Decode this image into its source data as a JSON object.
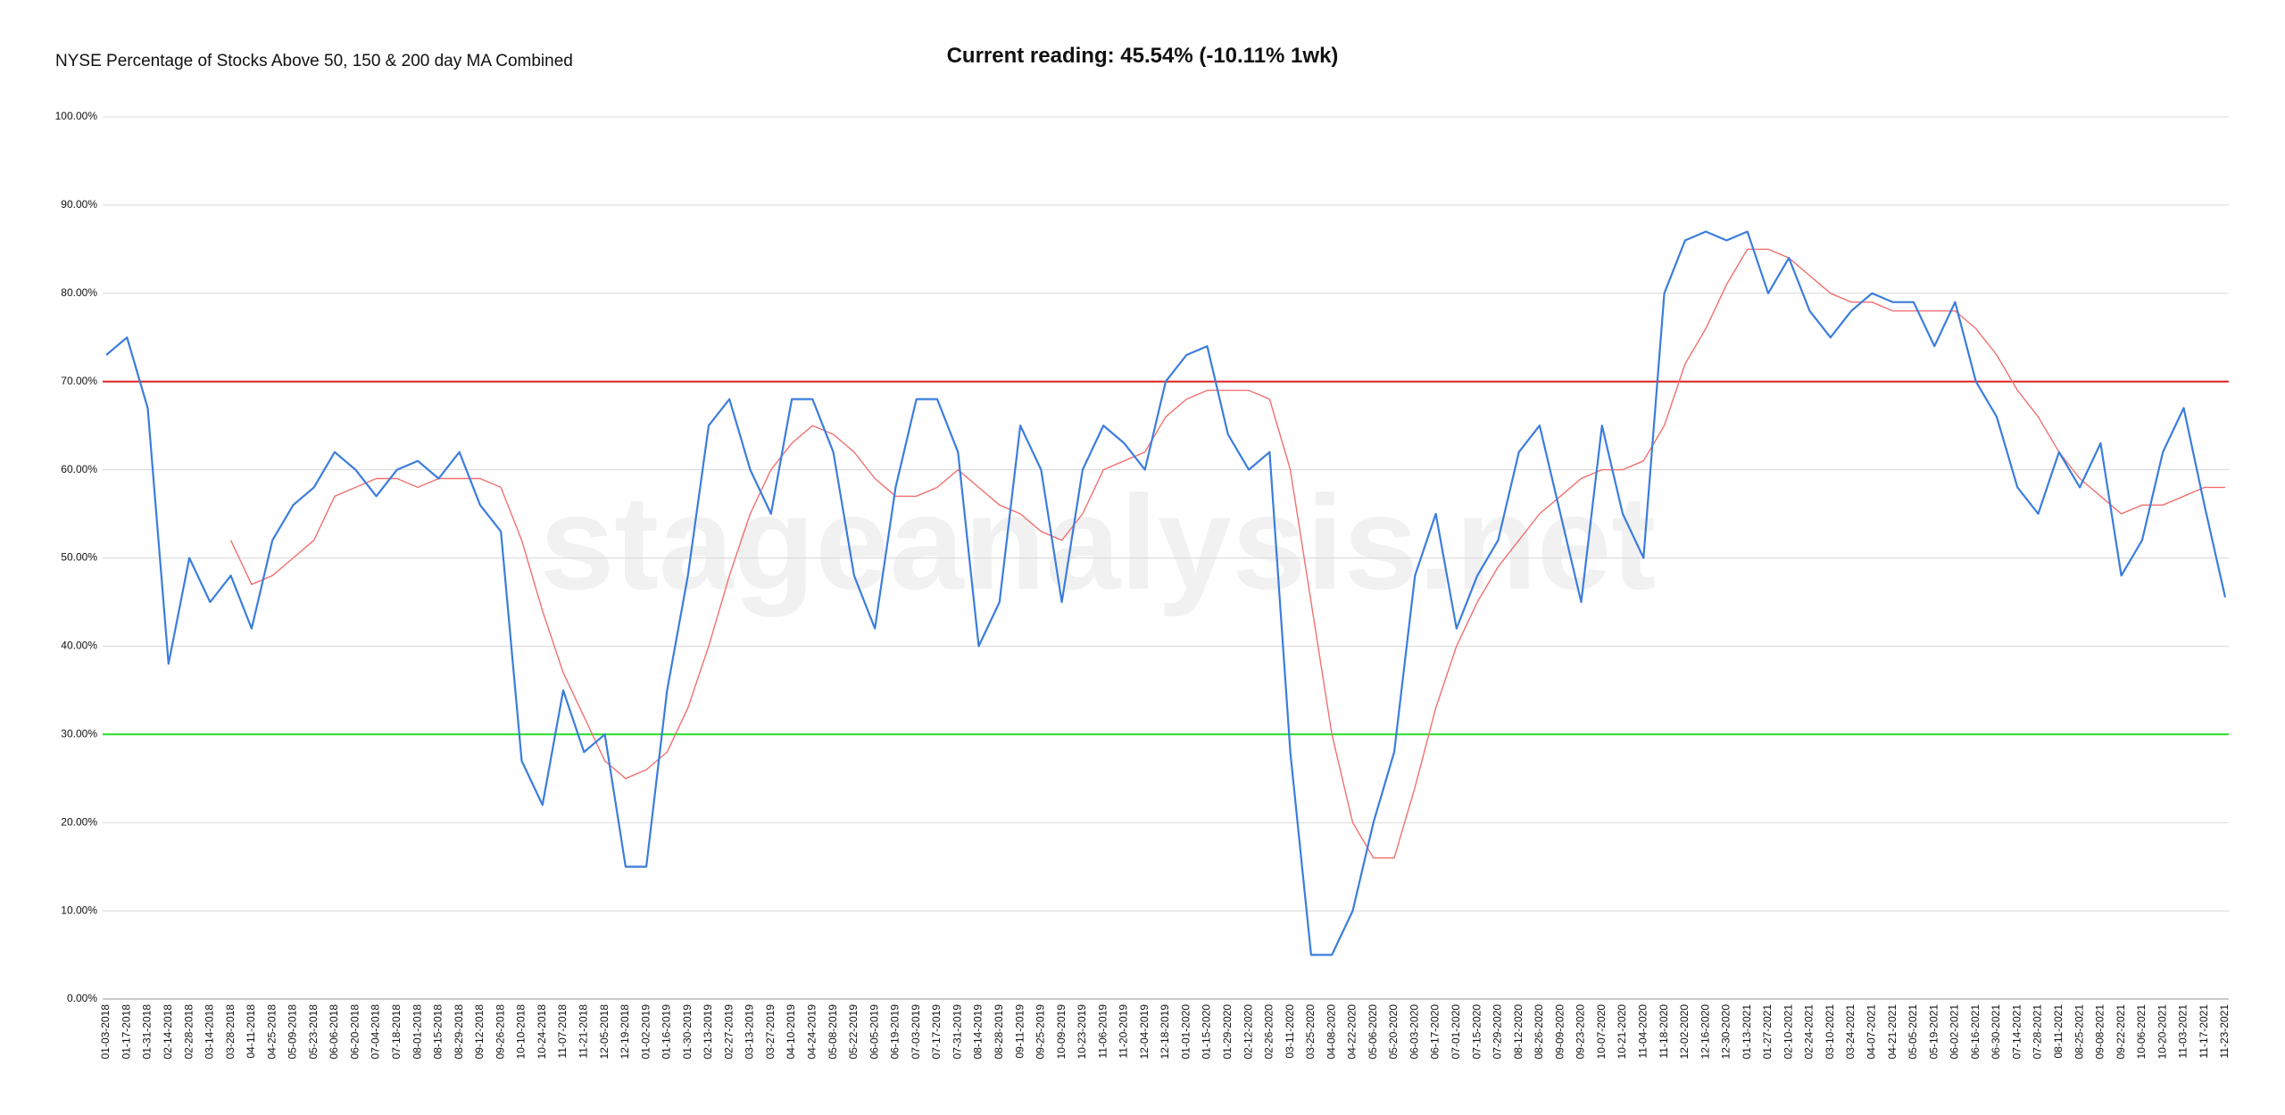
{
  "chart_data": {
    "type": "line",
    "title": "NYSE Percentage of Stocks Above 50, 150 & 200 day MA Combined",
    "subtitle": "Current reading: 45.54% (-10.11% 1wk)",
    "watermark": "stageanalysis.net",
    "categories": [
      "01-03-2018",
      "01-17-2018",
      "01-31-2018",
      "02-14-2018",
      "02-28-2018",
      "03-14-2018",
      "03-28-2018",
      "04-11-2018",
      "04-25-2018",
      "05-09-2018",
      "05-23-2018",
      "06-06-2018",
      "06-20-2018",
      "07-04-2018",
      "07-18-2018",
      "08-01-2018",
      "08-15-2018",
      "08-29-2018",
      "09-12-2018",
      "09-26-2018",
      "10-10-2018",
      "10-24-2018",
      "11-07-2018",
      "11-21-2018",
      "12-05-2018",
      "12-19-2018",
      "01-02-2019",
      "01-16-2019",
      "01-30-2019",
      "02-13-2019",
      "02-27-2019",
      "03-13-2019",
      "03-27-2019",
      "04-10-2019",
      "04-24-2019",
      "05-08-2019",
      "05-22-2019",
      "06-05-2019",
      "06-19-2019",
      "07-03-2019",
      "07-17-2019",
      "07-31-2019",
      "08-14-2019",
      "08-28-2019",
      "09-11-2019",
      "09-25-2019",
      "10-09-2019",
      "10-23-2019",
      "11-06-2019",
      "11-20-2019",
      "12-04-2019",
      "12-18-2019",
      "01-01-2020",
      "01-15-2020",
      "01-29-2020",
      "02-12-2020",
      "02-26-2020",
      "03-11-2020",
      "03-25-2020",
      "04-08-2020",
      "04-22-2020",
      "05-06-2020",
      "05-20-2020",
      "06-03-2020",
      "06-17-2020",
      "07-01-2020",
      "07-15-2020",
      "07-29-2020",
      "08-12-2020",
      "08-26-2020",
      "09-09-2020",
      "09-23-2020",
      "10-07-2020",
      "10-21-2020",
      "11-04-2020",
      "11-18-2020",
      "12-02-2020",
      "12-16-2020",
      "12-30-2020",
      "01-13-2021",
      "01-27-2021",
      "02-10-2021",
      "02-24-2021",
      "03-10-2021",
      "03-24-2021",
      "04-07-2021",
      "04-21-2021",
      "05-05-2021",
      "05-19-2021",
      "06-02-2021",
      "06-16-2021",
      "06-30-2021",
      "07-14-2021",
      "07-28-2021",
      "08-11-2021",
      "08-25-2021",
      "09-08-2021",
      "09-22-2021",
      "10-06-2021",
      "10-20-2021",
      "11-03-2021",
      "11-17-2021",
      "11-23-2021"
    ],
    "series": [
      {
        "color": "#3b7ddd",
        "width": 2.2,
        "values": [
          73,
          75,
          67,
          38,
          50,
          45,
          48,
          42,
          52,
          56,
          58,
          62,
          60,
          57,
          60,
          61,
          59,
          62,
          56,
          53,
          27,
          22,
          35,
          28,
          30,
          15,
          15,
          35,
          48,
          65,
          68,
          60,
          55,
          68,
          68,
          62,
          48,
          42,
          58,
          68,
          68,
          62,
          40,
          45,
          65,
          60,
          45,
          60,
          65,
          63,
          60,
          70,
          73,
          74,
          64,
          60,
          62,
          28,
          5,
          5,
          10,
          20,
          28,
          48,
          55,
          42,
          48,
          52,
          62,
          65,
          55,
          45,
          65,
          55,
          50,
          80,
          86,
          87,
          86,
          87,
          80,
          84,
          78,
          75,
          78,
          80,
          79,
          79,
          74,
          79,
          70,
          66,
          58,
          55,
          62,
          58,
          63,
          48,
          52,
          62,
          67,
          56,
          45.54
        ]
      },
      {
        "color": "#f07070",
        "width": 1.4,
        "values": [
          null,
          null,
          null,
          null,
          null,
          null,
          52,
          47,
          48,
          50,
          52,
          57,
          58,
          59,
          59,
          58,
          59,
          59,
          59,
          58,
          52,
          44,
          37,
          32,
          27,
          25,
          26,
          28,
          33,
          40,
          48,
          55,
          60,
          63,
          65,
          64,
          62,
          59,
          57,
          57,
          58,
          60,
          58,
          56,
          55,
          53,
          52,
          55,
          60,
          61,
          62,
          66,
          68,
          69,
          69,
          69,
          68,
          60,
          45,
          30,
          20,
          16,
          16,
          24,
          33,
          40,
          45,
          49,
          52,
          55,
          57,
          59,
          60,
          60,
          61,
          65,
          72,
          76,
          81,
          85,
          85,
          84,
          82,
          80,
          79,
          79,
          78,
          78,
          78,
          78,
          76,
          73,
          69,
          66,
          62,
          59,
          57,
          55,
          56,
          56,
          57,
          58,
          58
        ]
      }
    ],
    "reference_lines": [
      {
        "value": 70,
        "color": "#e02020"
      },
      {
        "value": 30,
        "color": "#22dd22"
      }
    ],
    "ylim": [
      0,
      100
    ],
    "yticks": [
      {
        "value": 0,
        "label": "0.00%"
      },
      {
        "value": 10,
        "label": "10.00%"
      },
      {
        "value": 20,
        "label": "20.00%"
      },
      {
        "value": 30,
        "label": "30.00%"
      },
      {
        "value": 40,
        "label": "40.00%"
      },
      {
        "value": 50,
        "label": "50.00%"
      },
      {
        "value": 60,
        "label": "60.00%"
      },
      {
        "value": 70,
        "label": "70.00%"
      },
      {
        "value": 80,
        "label": "80.00%"
      },
      {
        "value": 90,
        "label": "90.00%"
      },
      {
        "value": 100,
        "label": "100.00%"
      }
    ],
    "grid": true
  }
}
